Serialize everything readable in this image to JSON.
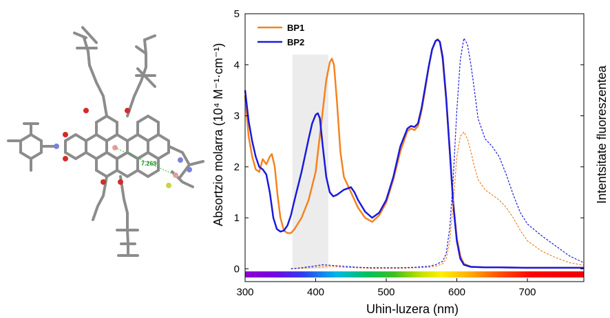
{
  "chart_data": {
    "type": "line",
    "xlabel": "Uhin-luzera (nm)",
    "ylabel_left": "Absortzio molarra (10⁴ M⁻¹·cm⁻¹)",
    "ylabel_right": "Intentsitate fluoreszentea",
    "xlim": [
      300,
      780
    ],
    "ylim": [
      -0.25,
      5
    ],
    "x_ticks": [
      300,
      400,
      500,
      600,
      700
    ],
    "y_ticks": [
      0,
      1,
      2,
      3,
      4,
      5
    ],
    "highlight_band_x": [
      367,
      418
    ],
    "spectrum_bar_x": [
      300,
      780
    ],
    "grid": false,
    "legend_position": "top-left",
    "legend": [
      {
        "name": "BP1",
        "color": "#f5821f"
      },
      {
        "name": "BP2",
        "color": "#1a1adb"
      }
    ],
    "series": [
      {
        "name": "BP1",
        "kind": "absorption",
        "color": "#f5821f",
        "dash": false,
        "x": [
          300,
          305,
          310,
          315,
          320,
          325,
          330,
          335,
          338,
          342,
          346,
          350,
          355,
          360,
          365,
          370,
          380,
          390,
          400,
          405,
          410,
          415,
          420,
          423,
          426,
          430,
          435,
          440,
          450,
          460,
          470,
          480,
          490,
          500,
          510,
          520,
          530,
          535,
          540,
          545,
          550,
          555,
          560,
          565,
          570,
          573,
          576,
          580,
          585,
          590,
          595,
          600,
          605,
          610,
          620,
          640,
          660,
          700,
          740,
          780
        ],
        "y": [
          3.4,
          2.6,
          2.2,
          1.95,
          1.9,
          2.15,
          2.05,
          2.2,
          2.25,
          2.0,
          1.45,
          1.0,
          0.75,
          0.7,
          0.7,
          0.78,
          1.0,
          1.35,
          1.9,
          2.5,
          3.1,
          3.7,
          4.05,
          4.12,
          4.0,
          3.3,
          2.3,
          1.8,
          1.5,
          1.2,
          1.0,
          0.92,
          1.05,
          1.3,
          1.75,
          2.3,
          2.7,
          2.75,
          2.72,
          2.8,
          3.1,
          3.5,
          3.95,
          4.3,
          4.47,
          4.5,
          4.45,
          4.1,
          3.3,
          2.3,
          1.3,
          0.6,
          0.25,
          0.1,
          0.04,
          0.03,
          0.03,
          0.02,
          0.02,
          0.02
        ]
      },
      {
        "name": "BP2",
        "kind": "absorption",
        "color": "#1a1adb",
        "dash": false,
        "x": [
          300,
          305,
          310,
          315,
          320,
          325,
          330,
          335,
          340,
          345,
          350,
          355,
          360,
          365,
          370,
          380,
          390,
          395,
          400,
          403,
          406,
          410,
          415,
          420,
          425,
          430,
          440,
          450,
          455,
          460,
          470,
          480,
          490,
          500,
          510,
          520,
          530,
          535,
          540,
          545,
          550,
          555,
          560,
          565,
          570,
          573,
          576,
          580,
          585,
          590,
          595,
          600,
          605,
          610,
          620,
          640,
          660,
          700,
          740,
          780
        ],
        "y": [
          3.5,
          2.9,
          2.5,
          2.2,
          2.0,
          1.95,
          1.85,
          1.5,
          1.0,
          0.78,
          0.73,
          0.75,
          0.85,
          1.05,
          1.35,
          1.9,
          2.55,
          2.85,
          3.02,
          3.05,
          2.95,
          2.4,
          1.8,
          1.5,
          1.42,
          1.45,
          1.55,
          1.6,
          1.5,
          1.35,
          1.12,
          1.0,
          1.1,
          1.35,
          1.8,
          2.4,
          2.75,
          2.8,
          2.78,
          2.85,
          3.15,
          3.55,
          3.95,
          4.3,
          4.47,
          4.49,
          4.45,
          4.15,
          3.35,
          2.3,
          1.25,
          0.55,
          0.2,
          0.08,
          0.04,
          0.03,
          0.03,
          0.02,
          0.02,
          0.02
        ]
      },
      {
        "name": "BP1",
        "kind": "fluorescence",
        "color": "#f5821f",
        "dash": true,
        "x": [
          365,
          380,
          400,
          420,
          440,
          460,
          480,
          500,
          520,
          540,
          560,
          570,
          580,
          585,
          590,
          595,
          600,
          605,
          610,
          615,
          620,
          625,
          630,
          640,
          650,
          660,
          670,
          680,
          690,
          700,
          720,
          740,
          760,
          780
        ],
        "y": [
          0.0,
          0.01,
          0.03,
          0.05,
          0.03,
          0.02,
          0.01,
          0.01,
          0.01,
          0.02,
          0.03,
          0.05,
          0.1,
          0.2,
          0.55,
          1.3,
          2.2,
          2.6,
          2.68,
          2.55,
          2.3,
          2.0,
          1.75,
          1.55,
          1.45,
          1.35,
          1.2,
          1.0,
          0.75,
          0.55,
          0.35,
          0.22,
          0.12,
          0.07
        ]
      },
      {
        "name": "BP2",
        "kind": "fluorescence",
        "color": "#1a1adb",
        "dash": true,
        "x": [
          365,
          380,
          400,
          410,
          420,
          440,
          460,
          480,
          500,
          520,
          540,
          560,
          570,
          580,
          585,
          590,
          595,
          600,
          605,
          610,
          615,
          620,
          625,
          630,
          640,
          650,
          660,
          670,
          680,
          690,
          700,
          720,
          740,
          760,
          780
        ],
        "y": [
          0.0,
          0.02,
          0.06,
          0.08,
          0.07,
          0.05,
          0.03,
          0.02,
          0.02,
          0.02,
          0.03,
          0.05,
          0.08,
          0.15,
          0.3,
          0.8,
          1.8,
          3.1,
          4.1,
          4.52,
          4.4,
          4.0,
          3.5,
          2.95,
          2.55,
          2.4,
          2.2,
          1.85,
          1.45,
          1.1,
          0.88,
          0.65,
          0.45,
          0.25,
          0.12
        ]
      }
    ]
  },
  "molecule_figure": {
    "distance_label": "7.269"
  }
}
